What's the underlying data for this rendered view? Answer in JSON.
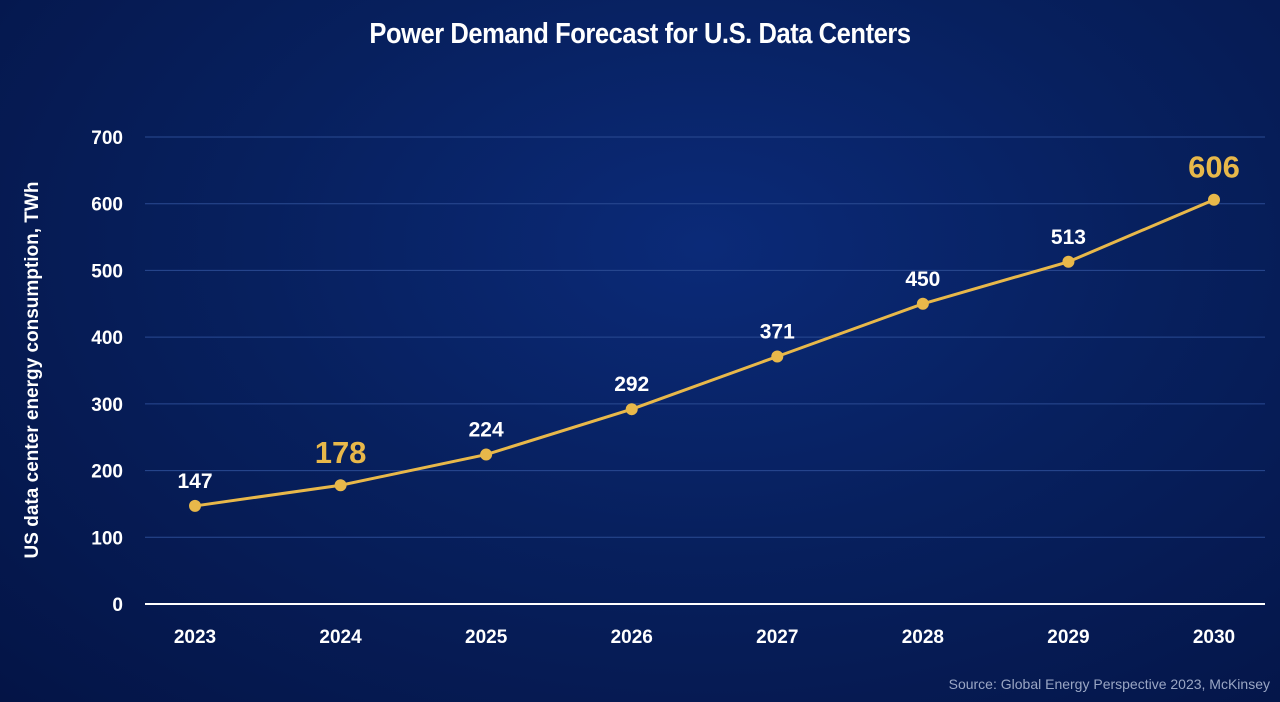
{
  "colors": {
    "line": "#e8b84a",
    "highlight": "#e8b84a",
    "label": "#ffffff",
    "axis": "#ffffff",
    "grid": "#2a4a92"
  },
  "source_text": "Source: Global Energy Perspective 2023, McKinsey",
  "chart_data": {
    "type": "line",
    "title": "Power Demand Forecast for U.S. Data Centers",
    "xlabel": "",
    "ylabel": "US data center energy consumption, TWh",
    "categories": [
      "2023",
      "2024",
      "2025",
      "2026",
      "2027",
      "2028",
      "2029",
      "2030"
    ],
    "series": [
      {
        "values": [
          147,
          178,
          224,
          292,
          371,
          450,
          513,
          606
        ]
      }
    ],
    "data_labels": [
      "147",
      "178",
      "224",
      "292",
      "371",
      "450",
      "513",
      "606"
    ],
    "highlighted_labels": [
      "2024",
      "2030"
    ],
    "yticks": [
      "0",
      "100",
      "200",
      "300",
      "400",
      "500",
      "600",
      "700"
    ],
    "ylim": [
      0,
      700
    ],
    "grid": true,
    "legend": "none"
  }
}
